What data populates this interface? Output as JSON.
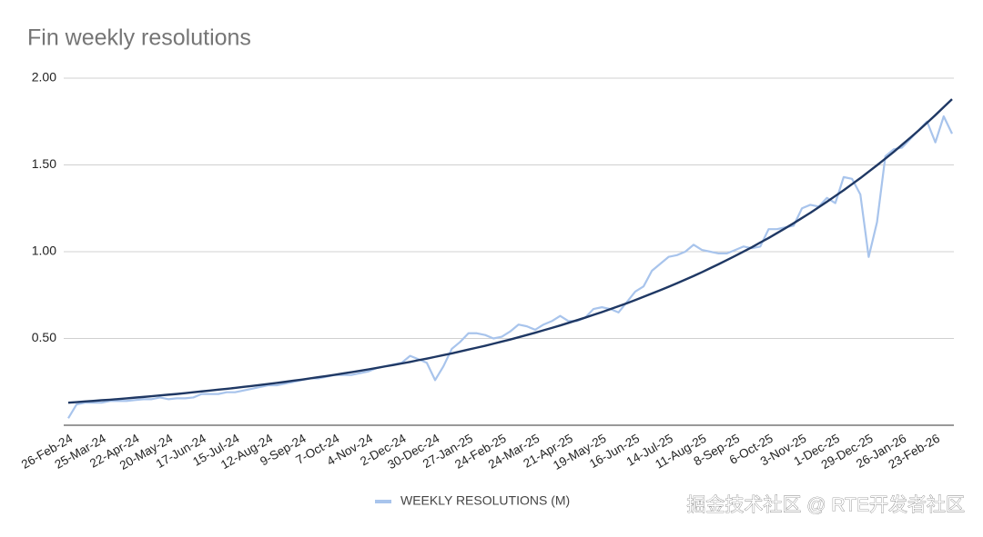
{
  "chart_data": {
    "type": "line",
    "title": "Fin weekly resolutions",
    "categories": [
      "26-Feb-24",
      null,
      null,
      null,
      "25-Mar-24",
      null,
      null,
      null,
      "22-Apr-24",
      null,
      null,
      null,
      "20-May-24",
      null,
      null,
      null,
      "17-Jun-24",
      null,
      null,
      null,
      "15-Jul-24",
      null,
      null,
      null,
      "12-Aug-24",
      null,
      null,
      null,
      "9-Sep-24",
      null,
      null,
      null,
      "7-Oct-24",
      null,
      null,
      null,
      "4-Nov-24",
      null,
      null,
      null,
      "2-Dec-24",
      null,
      null,
      null,
      "30-Dec-24",
      null,
      null,
      null,
      "27-Jan-25",
      null,
      null,
      null,
      "24-Feb-25",
      null,
      null,
      null,
      "24-Mar-25",
      null,
      null,
      null,
      "21-Apr-25",
      null,
      null,
      null,
      "19-May-25",
      null,
      null,
      null,
      "16-Jun-25",
      null,
      null,
      null,
      "14-Jul-25",
      null,
      null,
      null,
      "11-Aug-25",
      null,
      null,
      null,
      "8-Sep-25",
      null,
      null,
      null,
      "6-Oct-25",
      null,
      null,
      null,
      "3-Nov-25",
      null,
      null,
      null,
      "1-Dec-25",
      null,
      null,
      null,
      "29-Dec-25",
      null,
      null,
      null,
      "26-Jan-26",
      null,
      null,
      null,
      "23-Feb-26",
      null,
      null
    ],
    "series": [
      {
        "name": "WEEKLY RESOLUTIONS (M)",
        "color": "#a8c4ec",
        "values": [
          0.04,
          0.12,
          0.13,
          0.13,
          0.13,
          0.14,
          0.14,
          0.14,
          0.145,
          0.15,
          0.15,
          0.16,
          0.15,
          0.155,
          0.155,
          0.16,
          0.18,
          0.18,
          0.18,
          0.19,
          0.19,
          0.2,
          0.21,
          0.22,
          0.23,
          0.23,
          0.24,
          0.25,
          0.26,
          0.27,
          0.27,
          0.28,
          0.29,
          0.29,
          0.29,
          0.3,
          0.31,
          0.33,
          0.34,
          0.35,
          0.36,
          0.4,
          0.38,
          0.36,
          0.26,
          0.34,
          0.44,
          0.48,
          0.53,
          0.53,
          0.52,
          0.5,
          0.51,
          0.54,
          0.58,
          0.57,
          0.55,
          0.58,
          0.6,
          0.63,
          0.6,
          0.6,
          0.62,
          0.67,
          0.68,
          0.67,
          0.65,
          0.71,
          0.77,
          0.8,
          0.89,
          0.93,
          0.97,
          0.98,
          1.0,
          1.04,
          1.01,
          1.0,
          0.99,
          0.99,
          1.01,
          1.03,
          1.02,
          1.03,
          1.13,
          1.13,
          1.14,
          1.15,
          1.25,
          1.27,
          1.26,
          1.31,
          1.28,
          1.43,
          1.42,
          1.33,
          0.97,
          1.17,
          1.55,
          1.59,
          1.6,
          1.65,
          1.7,
          1.75,
          1.63,
          1.78,
          1.68
        ]
      },
      {
        "color": "#1f3864",
        "values": [
          0.13,
          0.133,
          0.137,
          0.14,
          0.144,
          0.147,
          0.151,
          0.155,
          0.159,
          0.163,
          0.167,
          0.172,
          0.176,
          0.18,
          0.185,
          0.19,
          0.195,
          0.2,
          0.205,
          0.21,
          0.215,
          0.221,
          0.226,
          0.232,
          0.238,
          0.244,
          0.25,
          0.257,
          0.263,
          0.27,
          0.277,
          0.284,
          0.291,
          0.299,
          0.306,
          0.314,
          0.322,
          0.33,
          0.339,
          0.347,
          0.356,
          0.365,
          0.375,
          0.384,
          0.394,
          0.404,
          0.414,
          0.425,
          0.436,
          0.447,
          0.458,
          0.47,
          0.482,
          0.494,
          0.507,
          0.52,
          0.533,
          0.547,
          0.561,
          0.575,
          0.59,
          0.605,
          0.62,
          0.636,
          0.652,
          0.669,
          0.686,
          0.703,
          0.721,
          0.74,
          0.759,
          0.778,
          0.798,
          0.818,
          0.839,
          0.86,
          0.882,
          0.905,
          0.928,
          0.952,
          0.976,
          1.001,
          1.026,
          1.053,
          1.079,
          1.107,
          1.135,
          1.164,
          1.194,
          1.224,
          1.256,
          1.288,
          1.321,
          1.354,
          1.389,
          1.424,
          1.461,
          1.498,
          1.536,
          1.575,
          1.616,
          1.657,
          1.699,
          1.743,
          1.787,
          1.833,
          1.879
        ]
      }
    ],
    "ylim": [
      0,
      2
    ],
    "yticks": [
      {
        "value": 0.5,
        "label": "0.50"
      },
      {
        "value": 1,
        "label": "1.00"
      },
      {
        "value": 1.5,
        "label": "1.50"
      },
      {
        "value": 2,
        "label": "2.00"
      }
    ],
    "grid": true,
    "legend": "bottom",
    "watermark": "掘金技术社区 @ RTE开发者社区"
  }
}
